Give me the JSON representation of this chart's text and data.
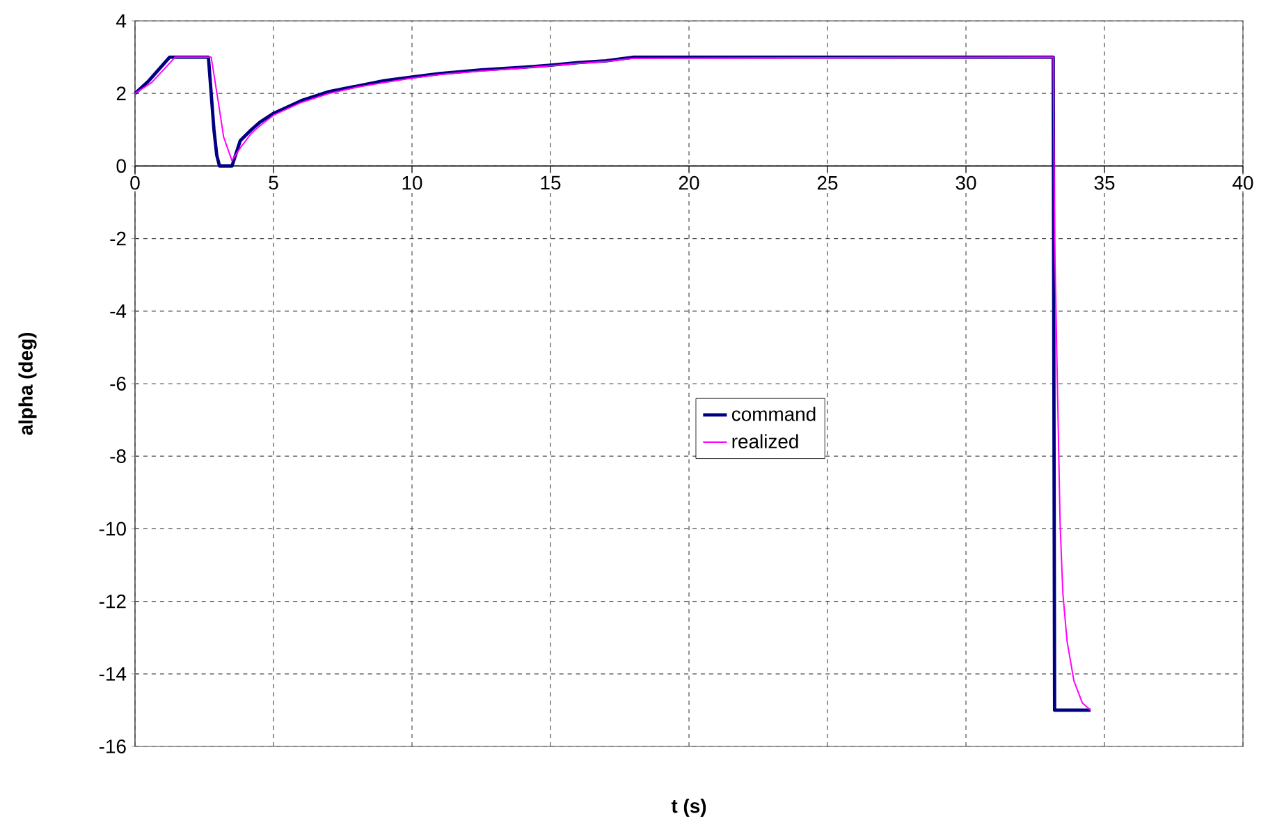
{
  "chart_data": {
    "type": "line",
    "xlabel": "t (s)",
    "ylabel": "alpha (deg)",
    "xlim": [
      0,
      40
    ],
    "xticks": [
      0,
      5,
      10,
      15,
      20,
      25,
      30,
      35,
      40
    ],
    "ylim": [
      -16,
      4
    ],
    "yticks": [
      -16,
      -14,
      -12,
      -10,
      -8,
      -6,
      -4,
      -2,
      0,
      2,
      4
    ],
    "grid": true,
    "legend": "center",
    "marker": "none",
    "line_style": "solid",
    "series": [
      {
        "name": "command",
        "color": "#000080",
        "x": [
          0,
          0.5,
          1.25,
          2.65,
          2.85,
          2.95,
          3.05,
          3.5,
          3.8,
          4.2,
          4.5,
          5,
          6,
          7,
          8,
          9,
          10,
          11,
          12.5,
          14,
          15,
          16,
          17,
          18,
          33.15,
          33.2,
          34.5
        ],
        "values": [
          2,
          2.35,
          3,
          3,
          1,
          0.3,
          0,
          0,
          0.7,
          1.0,
          1.2,
          1.45,
          1.8,
          2.05,
          2.2,
          2.35,
          2.45,
          2.55,
          2.65,
          2.72,
          2.78,
          2.85,
          2.9,
          3,
          3,
          -15,
          -15
        ]
      },
      {
        "name": "realized",
        "color": "#ff00ff",
        "x": [
          0,
          0.6,
          1.45,
          2.75,
          3.0,
          3.2,
          3.5,
          3.8,
          4.2,
          4.5,
          5,
          6,
          7,
          8,
          9,
          10,
          11,
          12.5,
          14,
          15,
          16,
          17,
          18,
          33.15,
          33.2,
          33.3,
          33.4,
          33.5,
          33.65,
          33.9,
          34.2,
          34.5
        ],
        "values": [
          2,
          2.3,
          3,
          3,
          1.8,
          0.8,
          0.15,
          0.5,
          0.9,
          1.1,
          1.4,
          1.75,
          2.0,
          2.17,
          2.3,
          2.42,
          2.52,
          2.62,
          2.7,
          2.76,
          2.83,
          2.88,
          2.97,
          3,
          -2,
          -6,
          -9.9,
          -11.8,
          -13.1,
          -14.2,
          -14.8,
          -15
        ]
      }
    ]
  }
}
